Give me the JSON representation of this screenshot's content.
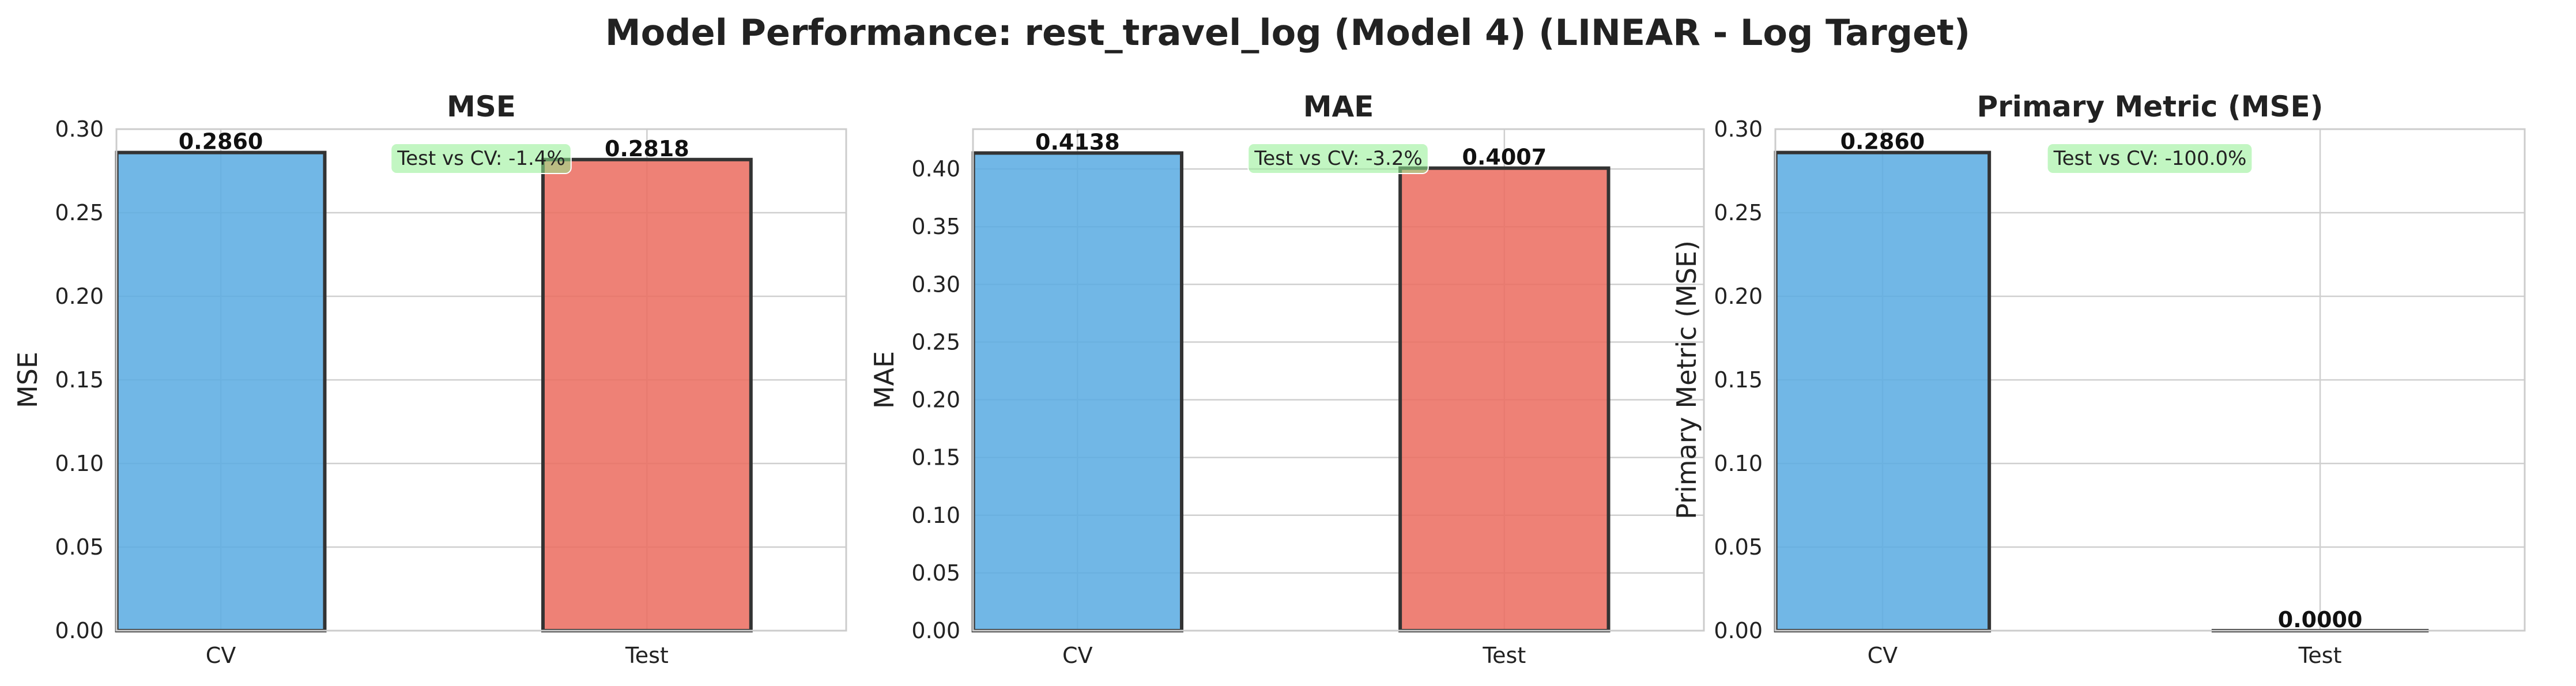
{
  "figure_title": "Model Performance: rest_travel_log (Model 4) (LINEAR - Log Target)",
  "colors": {
    "cv": "#5DADE2",
    "test": "#EC7063",
    "annotation_bg": "#90EE90",
    "grid": "#cfcfcf",
    "edge": "#333333"
  },
  "chart_data": [
    {
      "type": "bar",
      "title": "MSE",
      "ylabel": "MSE",
      "categories": [
        "CV",
        "Test"
      ],
      "values": [
        0.286,
        0.2818
      ],
      "value_labels": [
        "0.2860",
        "0.2818"
      ],
      "ylim": [
        0,
        0.3
      ],
      "yticks": [
        "0.00",
        "0.05",
        "0.10",
        "0.15",
        "0.20",
        "0.25",
        "0.30"
      ],
      "ytick_values": [
        0,
        0.05,
        0.1,
        0.15,
        0.2,
        0.25,
        0.3
      ],
      "annotation": "Test vs CV: -1.4%",
      "grid": true
    },
    {
      "type": "bar",
      "title": "MAE",
      "ylabel": "MAE",
      "categories": [
        "CV",
        "Test"
      ],
      "values": [
        0.4138,
        0.4007
      ],
      "value_labels": [
        "0.4138",
        "0.4007"
      ],
      "ylim": [
        0,
        0.4345
      ],
      "yticks": [
        "0.00",
        "0.05",
        "0.10",
        "0.15",
        "0.20",
        "0.25",
        "0.30",
        "0.35",
        "0.40"
      ],
      "ytick_values": [
        0,
        0.05,
        0.1,
        0.15,
        0.2,
        0.25,
        0.3,
        0.35,
        0.4
      ],
      "annotation": "Test vs CV: -3.2%",
      "grid": true
    },
    {
      "type": "bar",
      "title": "Primary Metric (MSE)",
      "ylabel": "Primary Metric (MSE)",
      "categories": [
        "CV",
        "Test"
      ],
      "values": [
        0.286,
        0.0
      ],
      "value_labels": [
        "0.2860",
        "0.0000"
      ],
      "ylim": [
        0,
        0.3
      ],
      "yticks": [
        "0.00",
        "0.05",
        "0.10",
        "0.15",
        "0.20",
        "0.25",
        "0.30"
      ],
      "ytick_values": [
        0,
        0.05,
        0.1,
        0.15,
        0.2,
        0.25,
        0.3
      ],
      "annotation": "Test vs CV: -100.0%",
      "grid": true
    }
  ]
}
